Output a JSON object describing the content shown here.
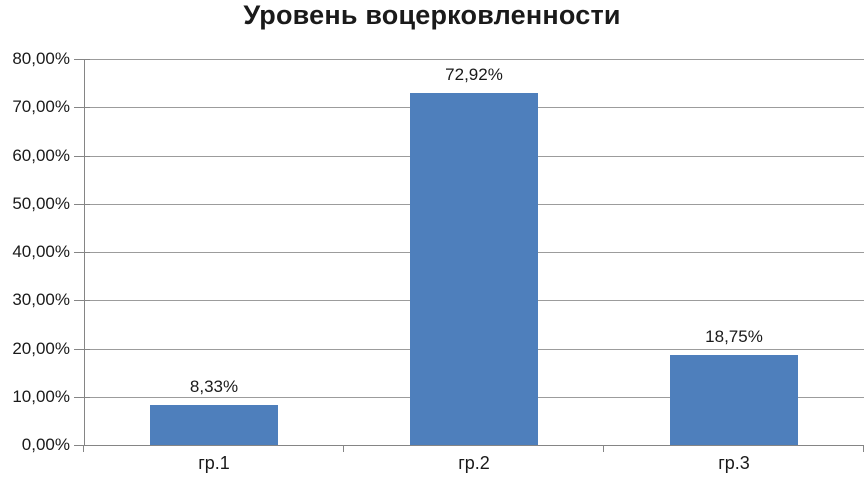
{
  "chart_data": {
    "type": "bar",
    "title": "Уровень воцерковленности",
    "categories": [
      "гр.1",
      "гр.2",
      "гр.3"
    ],
    "values": [
      8.33,
      72.92,
      18.75
    ],
    "value_labels": [
      "8,33%",
      "72,92%",
      "18,75%"
    ],
    "y_ticks": [
      "0,00%",
      "10,00%",
      "20,00%",
      "30,00%",
      "40,00%",
      "50,00%",
      "60,00%",
      "70,00%",
      "80,00%"
    ],
    "ylim": [
      0,
      80
    ],
    "y_tick_step": 10,
    "xlabel": "",
    "ylabel": "",
    "grid": true,
    "legend": "none",
    "colors": {
      "bar": "#4e7fbc",
      "gridline": "#9c9c9c",
      "axis": "#858585",
      "text": "#1a1a1a",
      "background": "#ffffff"
    }
  }
}
